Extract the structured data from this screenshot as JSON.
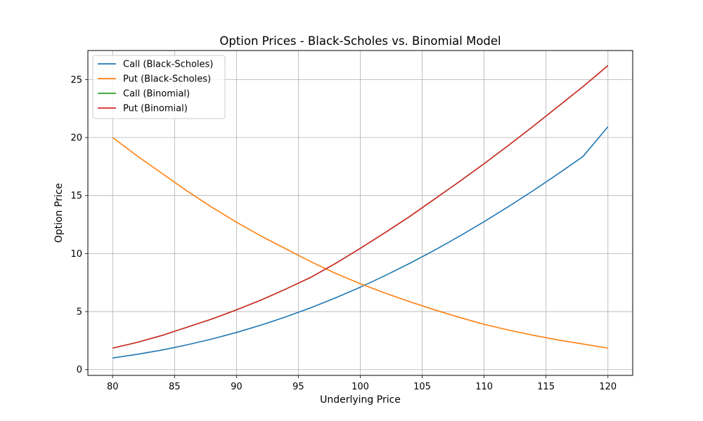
{
  "chart_data": {
    "type": "line",
    "title": "Option Prices - Black-Scholes vs. Binomial Model",
    "xlabel": "Underlying Price",
    "ylabel": "Option Price",
    "xlim": [
      78,
      122
    ],
    "ylim": [
      -0.5,
      27.5
    ],
    "xticks": [
      80,
      85,
      90,
      95,
      100,
      105,
      110,
      115,
      120
    ],
    "yticks": [
      0,
      5,
      10,
      15,
      20,
      25
    ],
    "grid": true,
    "legend_position": "top-left",
    "x": [
      80,
      82,
      84,
      86,
      88,
      90,
      92,
      94,
      96,
      98,
      100,
      102,
      104,
      106,
      108,
      110,
      112,
      114,
      116,
      118,
      120
    ],
    "series": [
      {
        "name": "Call (Black-Scholes)",
        "color": "#1f77b4",
        "values": [
          1.0,
          1.32,
          1.69,
          2.13,
          2.63,
          3.2,
          3.84,
          4.55,
          5.33,
          6.18,
          7.1,
          8.1,
          9.16,
          10.29,
          11.49,
          12.75,
          14.07,
          15.45,
          16.89,
          18.38,
          20.93
        ]
      },
      {
        "name": "Put (Black-Scholes)",
        "color": "#ff7f0e",
        "values": [
          20.0,
          18.4,
          16.9,
          15.4,
          14.0,
          12.7,
          11.5,
          10.4,
          9.3,
          8.3,
          7.4,
          6.6,
          5.85,
          5.15,
          4.5,
          3.9,
          3.4,
          2.95,
          2.55,
          2.2,
          1.85
        ]
      },
      {
        "name": "Call (Binomial)",
        "color": "#2ca02c",
        "values": [
          1.85,
          2.35,
          2.95,
          3.65,
          4.35,
          5.15,
          6.0,
          6.95,
          7.95,
          9.15,
          10.45,
          11.8,
          13.2,
          14.7,
          16.2,
          17.75,
          19.35,
          21.0,
          22.7,
          24.4,
          26.2
        ]
      },
      {
        "name": "Put (Binomial)",
        "color": "#d62728",
        "values": [
          1.85,
          2.35,
          2.95,
          3.65,
          4.35,
          5.15,
          6.0,
          6.95,
          7.95,
          9.15,
          10.45,
          11.8,
          13.2,
          14.7,
          16.2,
          17.75,
          19.35,
          21.0,
          22.7,
          24.4,
          26.2
        ]
      }
    ]
  }
}
